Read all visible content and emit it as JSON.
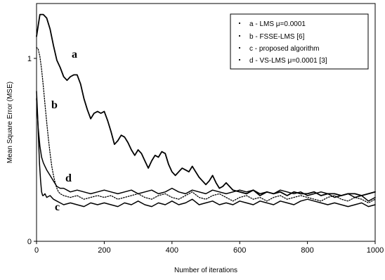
{
  "chart_data": {
    "type": "line",
    "title": "",
    "xlabel": "Number of iterations",
    "ylabel": "Mean Square Error (MSE)",
    "xlim": [
      0,
      1000
    ],
    "ylim": [
      0,
      1.3
    ],
    "x_ticks": [
      0,
      200,
      400,
      600,
      800,
      1000
    ],
    "x_tick_labels": [
      "0",
      "200",
      "400",
      "600",
      "800",
      "1000"
    ],
    "y_ticks": [
      0,
      1
    ],
    "y_tick_labels": [
      "0",
      "1"
    ],
    "grid": false,
    "legend_position": "top-right",
    "legend": [
      "a - LMS μ=0.0001",
      "b - FSSE-LMS [6]",
      "c - proposed algorithm",
      "d - VS-LMS μ=0.0001 [3]"
    ],
    "curve_labels": [
      "a",
      "b",
      "c",
      "d"
    ],
    "series": [
      {
        "id": "a",
        "x": [
          0,
          10,
          20,
          30,
          40,
          50,
          60,
          70,
          80,
          90,
          100,
          110,
          120,
          130,
          140,
          150,
          160,
          170,
          180,
          190,
          200,
          210,
          220,
          230,
          240,
          250,
          260,
          270,
          280,
          290,
          300,
          310,
          320,
          330,
          340,
          350,
          360,
          370,
          380,
          390,
          400,
          410,
          420,
          430,
          440,
          450,
          460,
          470,
          480,
          490,
          500,
          510,
          520,
          530,
          540,
          550,
          560,
          570,
          580,
          600,
          620,
          640,
          660,
          680,
          700,
          720,
          740,
          760,
          780,
          800,
          820,
          840,
          860,
          880,
          900,
          920,
          940,
          960,
          980,
          1000
        ],
        "y": [
          1.12,
          1.24,
          1.24,
          1.22,
          1.16,
          1.07,
          0.99,
          0.95,
          0.9,
          0.88,
          0.9,
          0.91,
          0.91,
          0.86,
          0.78,
          0.72,
          0.67,
          0.7,
          0.71,
          0.7,
          0.71,
          0.66,
          0.6,
          0.53,
          0.55,
          0.58,
          0.57,
          0.54,
          0.5,
          0.47,
          0.5,
          0.48,
          0.44,
          0.4,
          0.44,
          0.47,
          0.46,
          0.49,
          0.48,
          0.42,
          0.38,
          0.36,
          0.38,
          0.4,
          0.39,
          0.38,
          0.41,
          0.38,
          0.35,
          0.33,
          0.31,
          0.33,
          0.36,
          0.32,
          0.29,
          0.3,
          0.32,
          0.3,
          0.28,
          0.27,
          0.26,
          0.28,
          0.25,
          0.27,
          0.26,
          0.27,
          0.25,
          0.27,
          0.26,
          0.26,
          0.27,
          0.25,
          0.26,
          0.26,
          0.25,
          0.26,
          0.26,
          0.25,
          0.26,
          0.27
        ]
      },
      {
        "id": "b",
        "x": [
          0,
          5,
          10,
          15,
          20,
          25,
          30,
          35,
          40,
          45,
          50,
          55,
          60,
          65,
          70,
          80,
          100,
          120,
          140,
          160,
          180,
          200,
          220,
          240,
          260,
          280,
          300,
          320,
          340,
          360,
          380,
          400,
          420,
          440,
          460,
          480,
          500,
          520,
          540,
          560,
          580,
          600,
          620,
          640,
          660,
          680,
          700,
          720,
          740,
          760,
          780,
          800,
          820,
          840,
          860,
          880,
          900,
          920,
          940,
          960,
          980,
          1000
        ],
        "y": [
          1.06,
          1.05,
          1.01,
          0.94,
          0.85,
          0.75,
          0.65,
          0.56,
          0.48,
          0.41,
          0.36,
          0.32,
          0.29,
          0.27,
          0.26,
          0.25,
          0.24,
          0.25,
          0.23,
          0.24,
          0.25,
          0.24,
          0.25,
          0.23,
          0.24,
          0.25,
          0.26,
          0.24,
          0.23,
          0.25,
          0.26,
          0.24,
          0.23,
          0.25,
          0.27,
          0.24,
          0.23,
          0.25,
          0.26,
          0.24,
          0.22,
          0.24,
          0.25,
          0.23,
          0.24,
          0.22,
          0.24,
          0.25,
          0.23,
          0.24,
          0.25,
          0.24,
          0.23,
          0.22,
          0.24,
          0.25,
          0.23,
          0.22,
          0.24,
          0.23,
          0.21,
          0.23
        ]
      },
      {
        "id": "c",
        "x": [
          0,
          3,
          6,
          9,
          12,
          15,
          18,
          20,
          25,
          30,
          40,
          50,
          60,
          70,
          80,
          100,
          120,
          140,
          160,
          180,
          200,
          220,
          240,
          260,
          280,
          300,
          320,
          340,
          360,
          380,
          400,
          420,
          440,
          460,
          480,
          500,
          520,
          540,
          560,
          580,
          600,
          620,
          640,
          660,
          680,
          700,
          720,
          740,
          760,
          780,
          800,
          820,
          840,
          860,
          880,
          900,
          920,
          940,
          960,
          980,
          1000
        ],
        "y": [
          0.82,
          0.7,
          0.55,
          0.42,
          0.33,
          0.27,
          0.25,
          0.25,
          0.26,
          0.24,
          0.25,
          0.23,
          0.22,
          0.21,
          0.2,
          0.21,
          0.2,
          0.19,
          0.21,
          0.2,
          0.21,
          0.2,
          0.19,
          0.21,
          0.2,
          0.22,
          0.2,
          0.19,
          0.21,
          0.2,
          0.22,
          0.2,
          0.21,
          0.23,
          0.2,
          0.21,
          0.22,
          0.2,
          0.21,
          0.2,
          0.22,
          0.21,
          0.2,
          0.22,
          0.21,
          0.2,
          0.22,
          0.21,
          0.2,
          0.22,
          0.23,
          0.22,
          0.21,
          0.2,
          0.21,
          0.2,
          0.19,
          0.2,
          0.21,
          0.19,
          0.2
        ]
      },
      {
        "id": "d",
        "x": [
          0,
          5,
          10,
          15,
          20,
          25,
          30,
          40,
          50,
          60,
          70,
          80,
          90,
          100,
          120,
          140,
          160,
          180,
          200,
          220,
          240,
          260,
          280,
          300,
          320,
          340,
          360,
          380,
          400,
          420,
          440,
          460,
          480,
          500,
          520,
          540,
          560,
          580,
          600,
          620,
          640,
          660,
          680,
          700,
          720,
          740,
          760,
          780,
          800,
          820,
          840,
          860,
          880,
          900,
          920,
          940,
          960,
          980,
          1000
        ],
        "y": [
          0.78,
          0.62,
          0.52,
          0.46,
          0.43,
          0.41,
          0.39,
          0.36,
          0.33,
          0.3,
          0.29,
          0.29,
          0.28,
          0.27,
          0.28,
          0.27,
          0.26,
          0.27,
          0.28,
          0.27,
          0.26,
          0.27,
          0.28,
          0.26,
          0.27,
          0.28,
          0.26,
          0.27,
          0.29,
          0.27,
          0.26,
          0.28,
          0.27,
          0.26,
          0.28,
          0.27,
          0.26,
          0.27,
          0.28,
          0.27,
          0.28,
          0.26,
          0.27,
          0.26,
          0.28,
          0.27,
          0.26,
          0.27,
          0.25,
          0.26,
          0.27,
          0.26,
          0.24,
          0.25,
          0.26,
          0.24,
          0.25,
          0.22,
          0.24
        ]
      }
    ]
  }
}
